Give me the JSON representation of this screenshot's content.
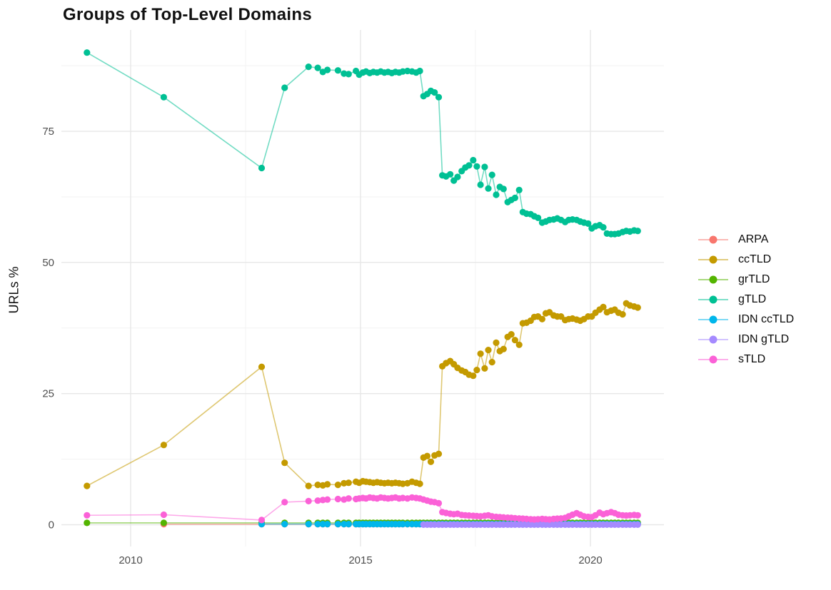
{
  "chart_data": {
    "type": "line",
    "title": "Groups of Top-Level Domains",
    "xlabel": "",
    "ylabel": "URLs %",
    "grid": true,
    "legend_position": "right",
    "x_ticks": [
      2010,
      2015,
      2020
    ],
    "x_tick_labels": [
      "2010",
      "2015",
      "2020"
    ],
    "x_minor_ticks": [
      2012.5,
      2017.5
    ],
    "y_ticks": [
      0,
      25,
      50,
      75
    ],
    "y_tick_labels": [
      "0",
      "25",
      "50",
      "75"
    ],
    "y_minor_ticks": [
      12.5,
      37.5,
      62.5,
      87.5
    ],
    "x_range": [
      2008.45,
      2021.65
    ],
    "y_range": [
      -4.2,
      94.3
    ],
    "colors": {
      "major_grid": "#e7e7e7",
      "minor_grid": "#f3f3f3",
      "tick_text": "#4e4e4e",
      "title_text": "#111111"
    },
    "x_groups": {
      "early_full": [
        2009.05,
        2010.72,
        2012.85,
        2013.35
      ],
      "early_from2010": [
        2010.72,
        2012.85,
        2013.35
      ],
      "early_from2012": [
        2012.85,
        2013.35
      ],
      "monthly_2014": [
        2013.87,
        2014.07,
        2014.18,
        2014.28,
        2014.51,
        2014.64,
        2014.74,
        2014.9,
        2014.97,
        2015.05,
        2015.12,
        2015.2,
        2015.28,
        2015.36,
        2015.44,
        2015.52,
        2015.6,
        2015.68,
        2015.76,
        2015.84,
        2015.92,
        2016.02,
        2016.12,
        2016.21,
        2016.29
      ],
      "mid_2016": [
        2016.37,
        2016.45,
        2016.53,
        2016.61,
        2016.7
      ],
      "monthly_2017": [
        2016.78,
        2016.86,
        2016.95,
        2017.03,
        2017.11,
        2017.2,
        2017.28,
        2017.36,
        2017.45,
        2017.53,
        2017.61,
        2017.7,
        2017.78,
        2017.86,
        2017.95,
        2018.03,
        2018.11,
        2018.2,
        2018.28,
        2018.36,
        2018.45,
        2018.53,
        2018.61,
        2018.7,
        2018.78,
        2018.86,
        2018.95,
        2019.03,
        2019.11,
        2019.2,
        2019.28,
        2019.36,
        2019.45,
        2019.53,
        2019.61,
        2019.7,
        2019.78,
        2019.86,
        2019.95,
        2020.03,
        2020.11,
        2020.2,
        2020.28,
        2020.36,
        2020.45,
        2020.53,
        2020.61,
        2020.7,
        2020.78,
        2020.86,
        2020.95,
        2021.03
      ]
    },
    "series": [
      {
        "name": "ARPA",
        "color": "#F8766D",
        "x_keys": [
          "early_from2010",
          "monthly_2014",
          "mid_2016",
          "monthly_2017"
        ],
        "y_flat": 0.1
      },
      {
        "name": "ccTLD",
        "color": "#C49A00",
        "x_keys": [
          "early_full",
          "monthly_2014",
          "mid_2016",
          "monthly_2017"
        ],
        "y": [
          7.4,
          15.2,
          30.1,
          11.8,
          7.4,
          7.6,
          7.5,
          7.7,
          7.6,
          7.9,
          8.0,
          8.2,
          8.0,
          8.3,
          8.2,
          8.1,
          8.0,
          8.1,
          8.0,
          7.9,
          8.0,
          7.9,
          8.0,
          7.9,
          7.8,
          7.9,
          8.2,
          8.0,
          7.8,
          12.8,
          13.1,
          12.0,
          13.2,
          13.5,
          30.2,
          30.8,
          31.2,
          30.6,
          29.9,
          29.4,
          29.1,
          28.6,
          28.4,
          29.5,
          32.6,
          29.8,
          33.3,
          31.0,
          34.7,
          33.1,
          33.5,
          35.8,
          36.3,
          35.2,
          34.3,
          38.4,
          38.5,
          38.9,
          39.6,
          39.7,
          39.2,
          40.3,
          40.5,
          39.9,
          39.7,
          39.7,
          39.0,
          39.2,
          39.3,
          39.1,
          38.9,
          39.2,
          39.7,
          39.7,
          40.4,
          41.0,
          41.5,
          40.5,
          40.8,
          41.0,
          40.4,
          40.1,
          42.2,
          41.8,
          41.6,
          41.4
        ]
      },
      {
        "name": "grTLD",
        "color": "#53B400",
        "x_keys": [
          "early_full",
          "monthly_2014",
          "mid_2016",
          "monthly_2017"
        ],
        "y_flat": 0.35
      },
      {
        "name": "gTLD",
        "color": "#00C094",
        "x_keys": [
          "early_full",
          "monthly_2014",
          "mid_2016",
          "monthly_2017"
        ],
        "y": [
          90.0,
          81.5,
          68.0,
          83.3,
          87.3,
          87.1,
          86.3,
          86.7,
          86.6,
          86.0,
          85.9,
          86.5,
          85.8,
          86.2,
          86.4,
          86.1,
          86.3,
          86.2,
          86.4,
          86.2,
          86.3,
          86.1,
          86.3,
          86.2,
          86.4,
          86.5,
          86.4,
          86.2,
          86.5,
          81.7,
          82.1,
          82.7,
          82.4,
          81.5,
          66.6,
          66.4,
          66.8,
          65.6,
          66.3,
          67.4,
          68.1,
          68.5,
          69.5,
          68.3,
          64.8,
          68.2,
          64.1,
          66.7,
          62.9,
          64.4,
          64.0,
          61.5,
          61.9,
          62.3,
          63.8,
          59.6,
          59.3,
          59.2,
          58.8,
          58.5,
          57.6,
          57.8,
          58.1,
          58.2,
          58.4,
          58.1,
          57.7,
          58.1,
          58.2,
          58.1,
          57.8,
          57.6,
          57.4,
          56.5,
          56.9,
          57.1,
          56.7,
          55.5,
          55.4,
          55.4,
          55.5,
          55.8,
          56.0,
          55.9,
          56.1,
          56.0
        ]
      },
      {
        "name": "IDN ccTLD",
        "color": "#00B6EB",
        "x_keys": [
          "early_from2012",
          "monthly_2014",
          "mid_2016",
          "monthly_2017"
        ],
        "y_flat": 0.12
      },
      {
        "name": "IDN gTLD",
        "color": "#A58AFF",
        "x_keys": [
          "mid_2016",
          "monthly_2017"
        ],
        "y_flat": 0.02
      },
      {
        "name": "sTLD",
        "color": "#FB61D7",
        "x_keys": [
          "early_full",
          "monthly_2014",
          "mid_2016",
          "monthly_2017"
        ],
        "y": [
          1.8,
          1.9,
          0.9,
          4.3,
          4.5,
          4.6,
          4.7,
          4.8,
          4.9,
          4.8,
          5.0,
          4.9,
          5.0,
          5.1,
          5.0,
          5.2,
          5.1,
          5.0,
          5.2,
          5.1,
          5.0,
          5.1,
          5.2,
          5.0,
          5.1,
          5.0,
          5.2,
          5.1,
          5.0,
          4.8,
          4.6,
          4.4,
          4.3,
          4.1,
          2.4,
          2.25,
          2.1,
          2.0,
          2.1,
          1.85,
          1.8,
          1.75,
          1.7,
          1.65,
          1.6,
          1.7,
          1.8,
          1.6,
          1.5,
          1.45,
          1.4,
          1.35,
          1.3,
          1.25,
          1.2,
          1.15,
          1.1,
          1.05,
          1.0,
          1.05,
          1.1,
          1.05,
          1.0,
          1.1,
          1.15,
          1.2,
          1.3,
          1.6,
          1.9,
          2.2,
          1.9,
          1.6,
          1.5,
          1.45,
          1.8,
          2.3,
          2.0,
          2.2,
          2.4,
          2.2,
          1.9,
          1.8,
          1.75,
          1.8,
          1.85,
          1.8
        ]
      }
    ]
  }
}
